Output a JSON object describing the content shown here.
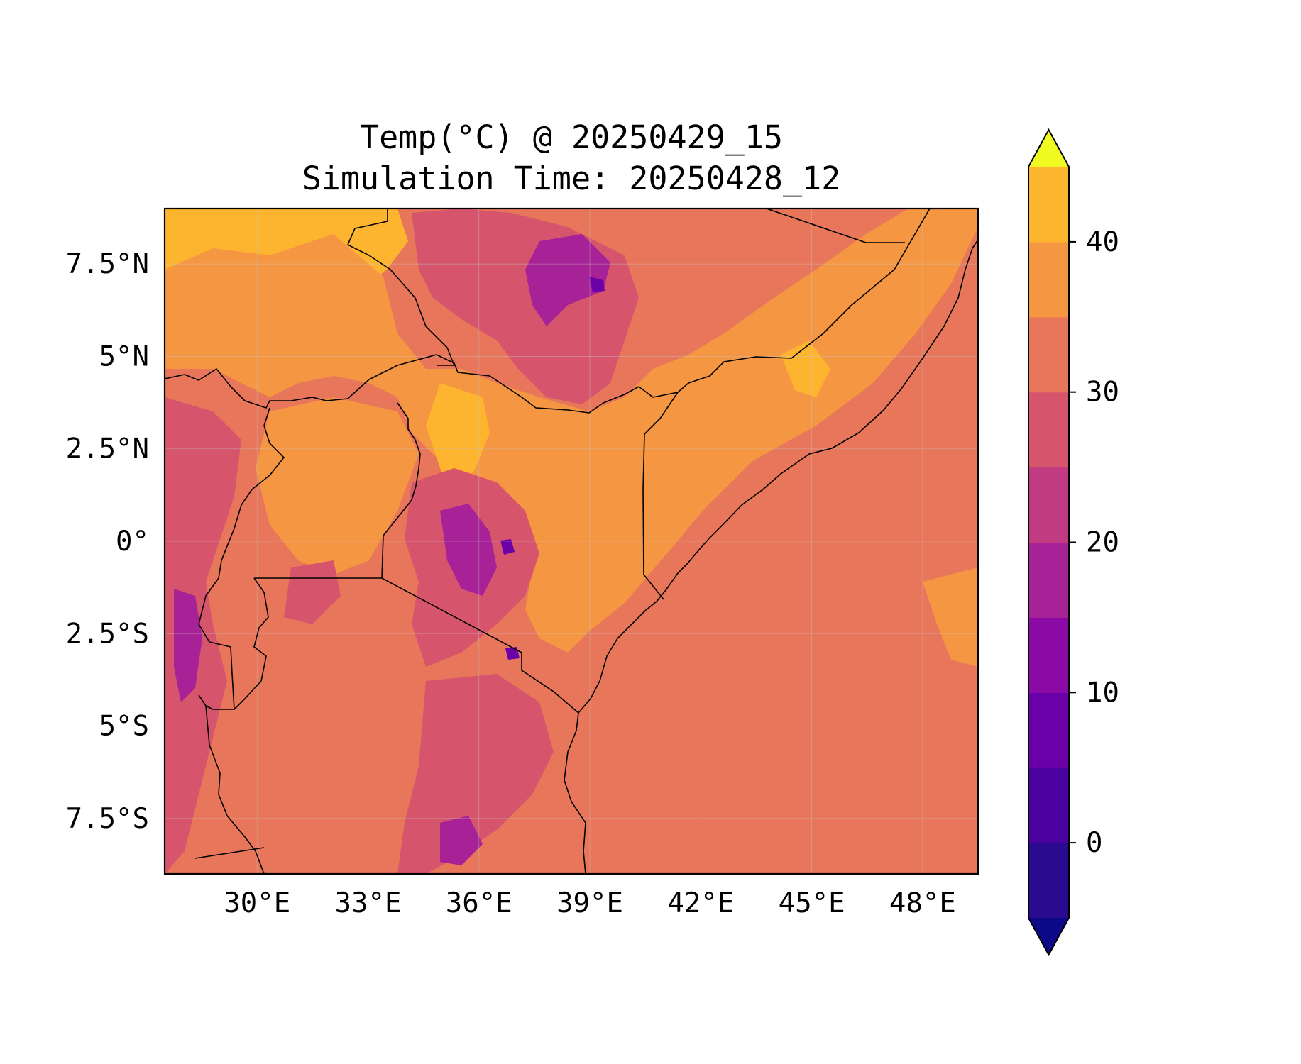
{
  "title": {
    "line1": "Temp(°C) @ 20250429_15",
    "line2": "Simulation Time: 20250428_12"
  },
  "map": {
    "type": "filled-contour-map",
    "variable": "Temp(°C)",
    "lon_range": [
      27.5,
      49.5
    ],
    "lat_range": [
      -9,
      9
    ],
    "lon_ticks": [
      {
        "value": 30,
        "label": "30°E"
      },
      {
        "value": 33,
        "label": "33°E"
      },
      {
        "value": 36,
        "label": "36°E"
      },
      {
        "value": 39,
        "label": "39°E"
      },
      {
        "value": 42,
        "label": "42°E"
      },
      {
        "value": 45,
        "label": "45°E"
      },
      {
        "value": 48,
        "label": "48°E"
      }
    ],
    "lat_ticks": [
      {
        "value": 7.5,
        "label": "7.5°N"
      },
      {
        "value": 5,
        "label": "5°N"
      },
      {
        "value": 2.5,
        "label": "2.5°N"
      },
      {
        "value": 0,
        "label": "0°"
      },
      {
        "value": -2.5,
        "label": "2.5°S"
      },
      {
        "value": -5,
        "label": "5°S"
      },
      {
        "value": -7.5,
        "label": "7.5°S"
      }
    ],
    "gridlines": true,
    "background_color": "#e8765a",
    "features": [
      "country-borders",
      "coastline"
    ]
  },
  "colorbar": {
    "orientation": "vertical",
    "placement": "right",
    "extend": "both",
    "range": [
      -5,
      45
    ],
    "levels": [
      -5,
      0,
      5,
      10,
      15,
      20,
      25,
      30,
      35,
      40,
      45
    ],
    "colors": [
      "#2a0a8f",
      "#4c02a1",
      "#6a00a8",
      "#8b0aa5",
      "#a72197",
      "#c13b82",
      "#d6556d",
      "#e8765a",
      "#f59642",
      "#fdb42f",
      "#f3e22b"
    ],
    "under_color": "#0d0887",
    "over_color": "#f0f921",
    "tick_labels": [
      {
        "value": 0,
        "label": "0"
      },
      {
        "value": 10,
        "label": "10"
      },
      {
        "value": 20,
        "label": "20"
      },
      {
        "value": 30,
        "label": "30"
      },
      {
        "value": 40,
        "label": "40"
      }
    ]
  }
}
